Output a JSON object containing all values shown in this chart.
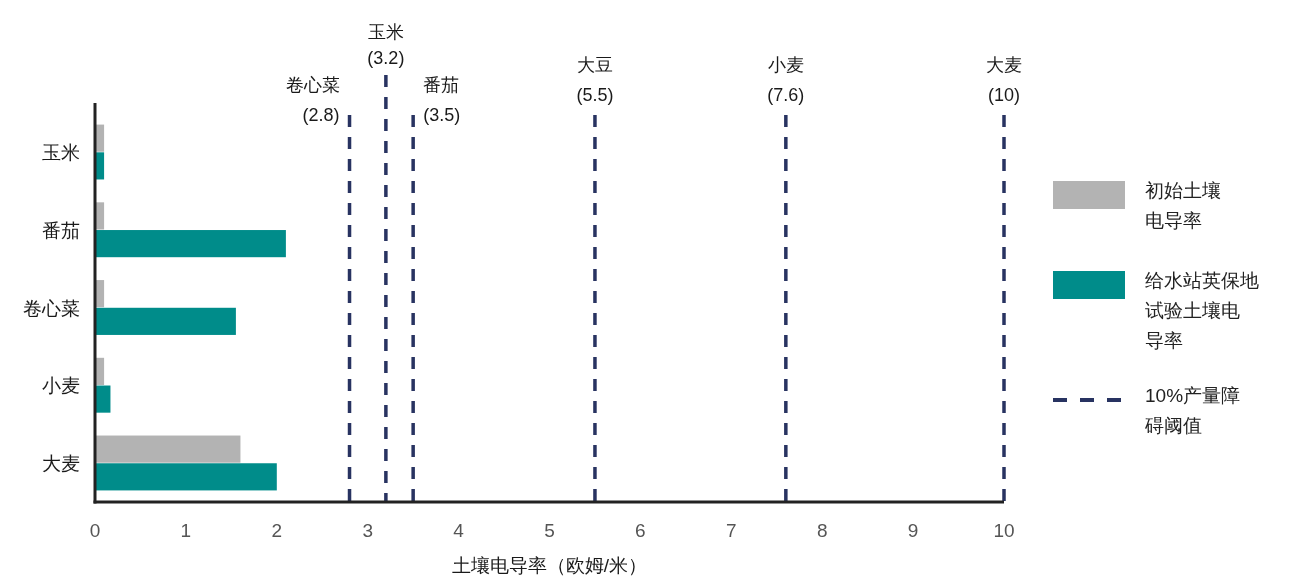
{
  "chart_data": {
    "type": "bar",
    "orientation": "horizontal",
    "categories": [
      "玉米",
      "番茄",
      "卷心菜",
      "小麦",
      "大麦"
    ],
    "series": [
      {
        "name": "初始土壤电导率",
        "color": "#b3b3b3",
        "values": [
          0.1,
          0.1,
          0.1,
          0.1,
          1.6
        ]
      },
      {
        "name": "给水站英保地试验土壤电导率",
        "color": "#008c8a",
        "values": [
          0.1,
          2.1,
          1.55,
          0.17,
          2.0
        ]
      }
    ],
    "xlim": [
      0,
      10
    ],
    "xticks": [
      0,
      1,
      2,
      3,
      4,
      5,
      6,
      7,
      8,
      9,
      10
    ],
    "xlabel": "土壤电导率（欧姆/米）",
    "ref_lines": [
      {
        "axis": "x",
        "value": 2.8,
        "label": "卷心菜\n(2.8)",
        "color": "#283361",
        "line_style": "dashed"
      },
      {
        "axis": "x",
        "value": 3.2,
        "label": "玉米\n(3.2)",
        "color": "#283361",
        "line_style": "dashed"
      },
      {
        "axis": "x",
        "value": 3.5,
        "label": "番茄\n(3.5)",
        "color": "#283361",
        "line_style": "dashed"
      },
      {
        "axis": "x",
        "value": 5.5,
        "label": "大豆\n(5.5)",
        "color": "#283361",
        "line_style": "dashed"
      },
      {
        "axis": "x",
        "value": 7.6,
        "label": "小麦\n(7.6)",
        "color": "#283361",
        "line_style": "dashed"
      },
      {
        "axis": "x",
        "value": 10,
        "label": "大麦\n(10)",
        "color": "#283361",
        "line_style": "dashed"
      }
    ],
    "annotations": [
      "10%产量障碍阈值"
    ],
    "legend": "right"
  }
}
